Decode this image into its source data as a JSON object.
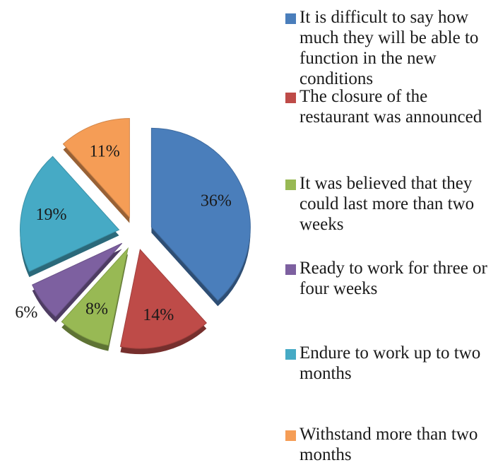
{
  "chart_data": {
    "type": "pie",
    "categories": [
      "It is difficult to say how much they will be able to function in the new conditions",
      "The closure of the restaurant was announced",
      "It was believed that they could last more than two weeks",
      "Ready to work for three or four weeks",
      "Endure to work up to two months",
      "Withstand more than two months"
    ],
    "values": [
      36,
      14,
      8,
      6,
      19,
      11
    ],
    "value_labels": [
      "36%",
      "14%",
      "8%",
      "6%",
      "19%",
      "11%"
    ],
    "colors": [
      "#4a7ebb",
      "#be4b48",
      "#98b954",
      "#7d60a0",
      "#46aac5",
      "#f59d56"
    ]
  }
}
